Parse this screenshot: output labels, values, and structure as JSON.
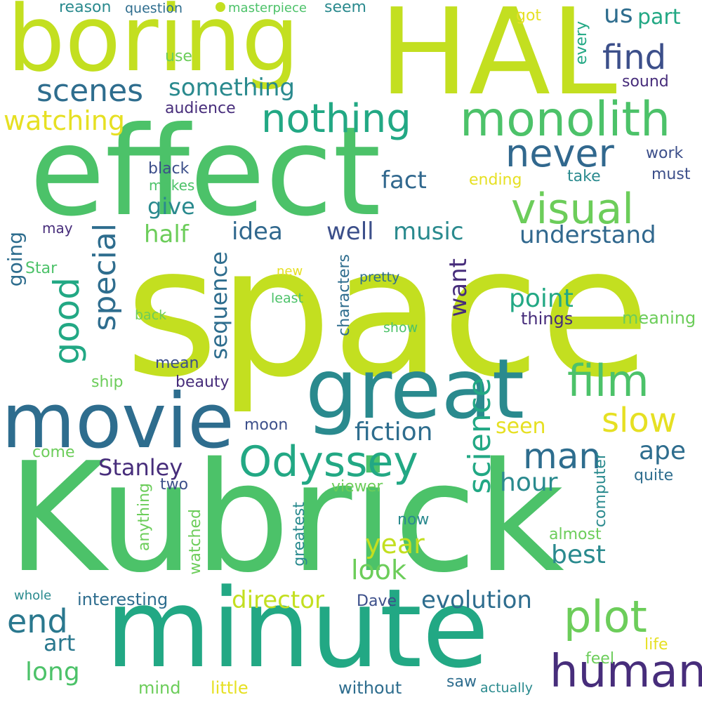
{
  "palette": {
    "yellow_green": "#c3df20",
    "green": "#4cc269",
    "teal": "#2a9a8a",
    "blue": "#2e6d8e",
    "indigo": "#3c4f8a",
    "purple": "#472d7b",
    "yellow": "#e6e023"
  },
  "words": [
    {
      "text": "space"
    },
    {
      "text": "Kubrick"
    },
    {
      "text": "effect"
    },
    {
      "text": "HAL"
    },
    {
      "text": "boring"
    },
    {
      "text": "minute"
    },
    {
      "text": "great"
    },
    {
      "text": "movie"
    },
    {
      "text": "monolith"
    },
    {
      "text": "Odyssey"
    },
    {
      "text": "human"
    },
    {
      "text": "film"
    },
    {
      "text": "plot"
    },
    {
      "text": "nothing"
    },
    {
      "text": "visual"
    },
    {
      "text": "never"
    },
    {
      "text": "find"
    },
    {
      "text": "scenes"
    },
    {
      "text": "something"
    },
    {
      "text": "slow"
    },
    {
      "text": "man"
    },
    {
      "text": "good"
    },
    {
      "text": "special"
    },
    {
      "text": "science"
    },
    {
      "text": "end"
    },
    {
      "text": "watching"
    },
    {
      "text": "sequence"
    },
    {
      "text": "understand"
    },
    {
      "text": "music"
    },
    {
      "text": "well"
    },
    {
      "text": "idea"
    },
    {
      "text": "fiction"
    },
    {
      "text": "Stanley"
    },
    {
      "text": "evolution"
    },
    {
      "text": "director"
    },
    {
      "text": "year"
    },
    {
      "text": "look"
    },
    {
      "text": "best"
    },
    {
      "text": "hour"
    },
    {
      "text": "point"
    },
    {
      "text": "want"
    },
    {
      "text": "fact"
    },
    {
      "text": "give"
    },
    {
      "text": "half"
    },
    {
      "text": "seen"
    },
    {
      "text": "ape"
    },
    {
      "text": "long"
    },
    {
      "text": "art"
    },
    {
      "text": "us"
    },
    {
      "text": "part"
    },
    {
      "text": "going"
    },
    {
      "text": "interesting"
    },
    {
      "text": "Dave"
    },
    {
      "text": "meaning"
    },
    {
      "text": "things"
    },
    {
      "text": "audience"
    },
    {
      "text": "sound"
    },
    {
      "text": "work"
    },
    {
      "text": "must"
    },
    {
      "text": "take"
    },
    {
      "text": "ending"
    },
    {
      "text": "black"
    },
    {
      "text": "makes"
    },
    {
      "text": "beauty"
    },
    {
      "text": "mean"
    },
    {
      "text": "moon"
    },
    {
      "text": "two"
    },
    {
      "text": "viewer"
    },
    {
      "text": "quite"
    },
    {
      "text": "computer"
    },
    {
      "text": "characters"
    },
    {
      "text": "now"
    },
    {
      "text": "almost"
    },
    {
      "text": "greatest"
    },
    {
      "text": "watched"
    },
    {
      "text": "anything"
    },
    {
      "text": "without"
    },
    {
      "text": "saw"
    },
    {
      "text": "actually"
    },
    {
      "text": "little"
    },
    {
      "text": "mind"
    },
    {
      "text": "feel"
    },
    {
      "text": "life"
    },
    {
      "text": "come"
    },
    {
      "text": "ship"
    },
    {
      "text": "back"
    },
    {
      "text": "Star"
    },
    {
      "text": "may"
    },
    {
      "text": "new"
    },
    {
      "text": "least"
    },
    {
      "text": "pretty"
    },
    {
      "text": "show"
    },
    {
      "text": "whole"
    },
    {
      "text": "reason"
    },
    {
      "text": "question"
    },
    {
      "text": "masterpiece"
    },
    {
      "text": "seem"
    },
    {
      "text": "got"
    },
    {
      "text": "every"
    },
    {
      "text": "use"
    }
  ]
}
